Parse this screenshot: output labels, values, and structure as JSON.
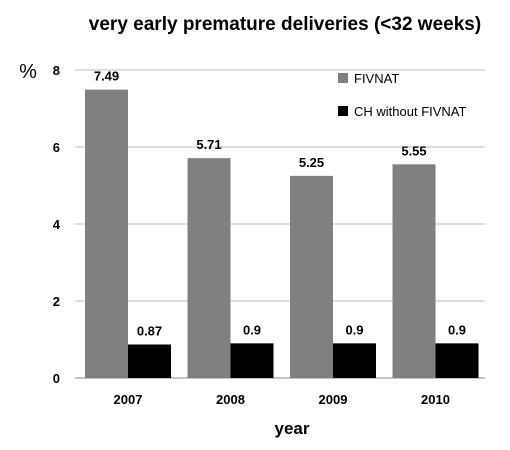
{
  "chart_data": {
    "type": "bar",
    "title": "very early premature deliveries (<32 weeks)",
    "ylabel": "%",
    "xlabel": "year",
    "categories": [
      "2007",
      "2008",
      "2009",
      "2010"
    ],
    "ylim": [
      0,
      8
    ],
    "yticks": [
      0,
      2,
      4,
      6,
      8
    ],
    "grid": true,
    "legend_position": "top-right",
    "series": [
      {
        "name": "FIVNAT",
        "color": "#808080",
        "values": [
          7.49,
          5.71,
          5.25,
          5.55
        ],
        "labels": [
          "7.49",
          "5.71",
          "5.25",
          "5.55"
        ]
      },
      {
        "name": "CH without FIVNAT",
        "color": "#000000",
        "values": [
          0.87,
          0.9,
          0.9,
          0.9
        ],
        "labels": [
          "0.87",
          "0.9",
          "0.9",
          "0.9"
        ]
      }
    ]
  }
}
